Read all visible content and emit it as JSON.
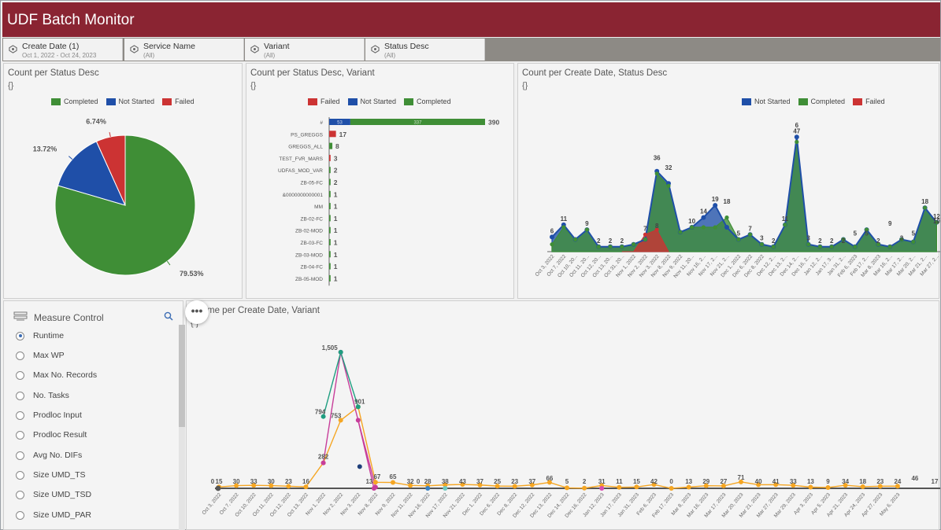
{
  "app": {
    "title": "UDF Batch Monitor"
  },
  "filters": [
    {
      "label": "Create Date (1)",
      "value": "Oct 1, 2022 - Oct 24, 2023"
    },
    {
      "label": "Service Name",
      "value": "(All)"
    },
    {
      "label": "Variant",
      "value": "(All)"
    },
    {
      "label": "Status Desc",
      "value": "(All)"
    }
  ],
  "colors": {
    "header": "#8a2432",
    "completed": "#3f8e36",
    "not_started": "#1f4fa8",
    "failed": "#cc3333",
    "runtime_orange": "#f5a623"
  },
  "panels": {
    "pie": {
      "title": "Count per Status Desc",
      "brace": "{}"
    },
    "bar": {
      "title": "Count per Status Desc, Variant",
      "brace": "{}"
    },
    "area": {
      "title": "Count per Create Date, Status Desc",
      "brace": "{}"
    },
    "runtime": {
      "title": "me per Create Date, Variant",
      "brace": "{ }"
    }
  },
  "measure_control": {
    "title": "Measure Control",
    "items": [
      "Runtime",
      "Max WP",
      "Max No. Records",
      "No. Tasks",
      "Prodloc Input",
      "Prodloc Result",
      "Avg No. DIFs",
      "Size UMD_TS",
      "Size UMD_TSD",
      "Size UMD_PAR"
    ],
    "selected": "Runtime"
  },
  "more_button": "•••",
  "chart_data": [
    {
      "type": "pie",
      "legend": [
        "Completed",
        "Not Started",
        "Failed"
      ],
      "slices": [
        {
          "name": "Completed",
          "value": 79.53,
          "label": "79.53%"
        },
        {
          "name": "Not Started",
          "value": 13.72,
          "label": "13.72%"
        },
        {
          "name": "Failed",
          "value": 6.74,
          "label": "6.74%"
        }
      ]
    },
    {
      "type": "bar",
      "orientation": "horizontal",
      "legend": [
        "Failed",
        "Not Started",
        "Completed"
      ],
      "categories": [
        "#",
        "PS_GREGGS",
        "GREGGS_ALL",
        "TEST_FVR_MARS",
        "UDFAS_MOD_VAR",
        "ZB-05-FC",
        "&0000000000001",
        "MM",
        "ZB-02-FC",
        "ZB-02-MOD",
        "ZB-03-FC",
        "ZB-03-MOD",
        "ZB-04-FC",
        "ZB-05-MOD"
      ],
      "totals": [
        "390",
        "17",
        "8",
        "3",
        "2",
        "2",
        "1",
        "1",
        "1",
        "1",
        "1",
        "1",
        "1",
        "1"
      ],
      "series": [
        {
          "name": "Failed",
          "values": [
            0,
            17,
            0,
            3,
            0,
            0,
            0,
            0,
            0,
            0,
            0,
            0,
            0,
            0
          ]
        },
        {
          "name": "Not Started",
          "values": [
            53,
            0,
            0,
            0,
            0,
            0,
            0,
            0,
            0,
            0,
            0,
            0,
            0,
            0
          ]
        },
        {
          "name": "Completed",
          "values": [
            337,
            0,
            8,
            0,
            2,
            2,
            1,
            1,
            1,
            1,
            1,
            1,
            1,
            1
          ]
        }
      ],
      "bar_inner_labels": [
        "53",
        "337"
      ]
    },
    {
      "type": "area",
      "legend": [
        "Not Started",
        "Completed",
        "Failed"
      ],
      "x": [
        "Oct 3, 2022",
        "Oct 7, 2022",
        "Oct 10, 20...",
        "Oct 11, 20...",
        "Oct 12, 20...",
        "Oct 13, 20...",
        "Oct 31, 20...",
        "Nov 1, 2022",
        "Nov 2, 2022",
        "Nov 3, 2022",
        "Nov 8, 2022",
        "Nov 9, 2022",
        "Nov 11, 20...",
        "Nov 16, 2...",
        "Nov 17, 2...",
        "Nov 21, 2...",
        "Dec 1, 2022",
        "Dec 6, 2022",
        "Dec 8, 2022",
        "Dec 12, 2...",
        "Dec 13, 2...",
        "Dec 14, 2...",
        "Dec 16, 2...",
        "Jan 12, 2...",
        "Jan 17, 3...",
        "Jan 31, 2...",
        "Feb 6, 2023",
        "Feb 17, 2...",
        "Mar 8, 2023",
        "Mar 16, 2...",
        "Mar 17, 2...",
        "Mar 20, 2...",
        "Mar 21, 2...",
        "Mar 27, 2..."
      ],
      "series": [
        {
          "name": "Not Started",
          "values": [
            6,
            11,
            5,
            9,
            2,
            2,
            2,
            3,
            5,
            33,
            28,
            8,
            10,
            14,
            19,
            10,
            5,
            7,
            3,
            2,
            11,
            47,
            3,
            2,
            2,
            5,
            2,
            9,
            3,
            2,
            5,
            4,
            18,
            12
          ]
        },
        {
          "name": "Completed",
          "values": [
            3,
            10,
            5,
            9,
            2,
            2,
            2,
            3,
            5,
            32,
            27,
            8,
            10,
            10,
            10,
            14,
            5,
            7,
            3,
            2,
            11,
            45,
            3,
            2,
            2,
            5,
            2,
            9,
            3,
            2,
            5,
            4,
            18,
            12
          ]
        },
        {
          "name": "Failed",
          "values": [
            0,
            0,
            0,
            0,
            0,
            0,
            0,
            0,
            7,
            9,
            0,
            0,
            0,
            0,
            0,
            0,
            0,
            0,
            0,
            0,
            0,
            0,
            0,
            0,
            0,
            0,
            0,
            0,
            0,
            0,
            0,
            0,
            0,
            0
          ]
        }
      ],
      "point_labels": [
        "6",
        "11",
        "9",
        "2",
        "2",
        "2",
        "7",
        "8",
        "36",
        "32",
        "10",
        "14",
        "19",
        "18",
        "5",
        "7",
        "3",
        "2",
        "11",
        "6",
        "47",
        "3",
        "2",
        "2",
        "2",
        "5",
        "5",
        "2",
        "9",
        "3",
        "5",
        "18",
        "12",
        "10"
      ]
    },
    {
      "type": "line",
      "x": [
        "Oct 3, 2022",
        "Oct 7, 2022",
        "Oct 10, 2022",
        "Oct 11, 2022",
        "Oct 12, 2022",
        "Oct 13, 2022",
        "Nov 1, 2022",
        "Nov 2, 2022",
        "Nov 3, 2022",
        "Nov 8, 2022",
        "Nov 9, 2022",
        "Nov 11, 2022",
        "Nov 16, 2022",
        "Nov 17, 2022",
        "Nov 21, 2022",
        "Dec 1, 2022",
        "Dec 6, 2022",
        "Dec 8, 2022",
        "Dec 12, 2022",
        "Dec 13, 2022",
        "Dec 14, 2022",
        "Dec 16, 2022",
        "Jan 12, 2023",
        "Jan 17, 2023",
        "Jan 31, 2023",
        "Feb 6, 2023",
        "Feb 17, 2023",
        "Mar 8, 2023",
        "Mar 16, 2023",
        "Mar 17, 2023",
        "Mar 20, 2023",
        "Mar 21, 2023",
        "Mar 27, 2023",
        "Mar 29, 2023",
        "Apr 3, 2023",
        "Apr 5, 2023",
        "Apr 21, 2023",
        "Apr 24, 2023",
        "Apr 27, 2023",
        "May 6, 2023"
      ],
      "series": [
        {
          "name": "main",
          "values": [
            15,
            30,
            33,
            30,
            23,
            16,
            282,
            753,
            901,
            67,
            65,
            32,
            28,
            38,
            43,
            37,
            25,
            23,
            37,
            66,
            5,
            2,
            31,
            11,
            15,
            42,
            0,
            13,
            29,
            27,
            71,
            40,
            41,
            33,
            13,
            9,
            34,
            18,
            23,
            24
          ]
        },
        {
          "name": "magenta",
          "values": [
            null,
            null,
            null,
            null,
            null,
            null,
            282,
            1505,
            753,
            13,
            null,
            null,
            null,
            null,
            null,
            null,
            null,
            null,
            null,
            null,
            null,
            null,
            null,
            null,
            null,
            null,
            null,
            null,
            null,
            null,
            null,
            null,
            null,
            null,
            null,
            null,
            null,
            null,
            null,
            null
          ]
        },
        {
          "name": "teal",
          "values": [
            null,
            null,
            null,
            null,
            null,
            null,
            794,
            1505,
            901,
            null,
            null,
            null,
            null,
            null,
            null,
            null,
            null,
            null,
            null,
            null,
            null,
            null,
            null,
            null,
            null,
            null,
            null,
            null,
            null,
            null,
            null,
            null,
            null,
            null,
            null,
            null,
            null,
            null,
            null,
            null
          ]
        }
      ],
      "point_labels": [
        "0",
        "15",
        "30",
        "33",
        "30",
        "23",
        "16",
        "282",
        "1,505",
        "794",
        "753",
        "901",
        "13",
        "67",
        "65",
        "32",
        "0",
        "28",
        "38",
        "43",
        "37",
        "25",
        "23",
        "37",
        "66",
        "5",
        "2",
        "31",
        "11",
        "15",
        "42",
        "0",
        "13",
        "29",
        "27",
        "71",
        "40",
        "41",
        "33",
        "13",
        "9",
        "34",
        "18",
        "23",
        "24",
        "46",
        "17"
      ]
    }
  ]
}
